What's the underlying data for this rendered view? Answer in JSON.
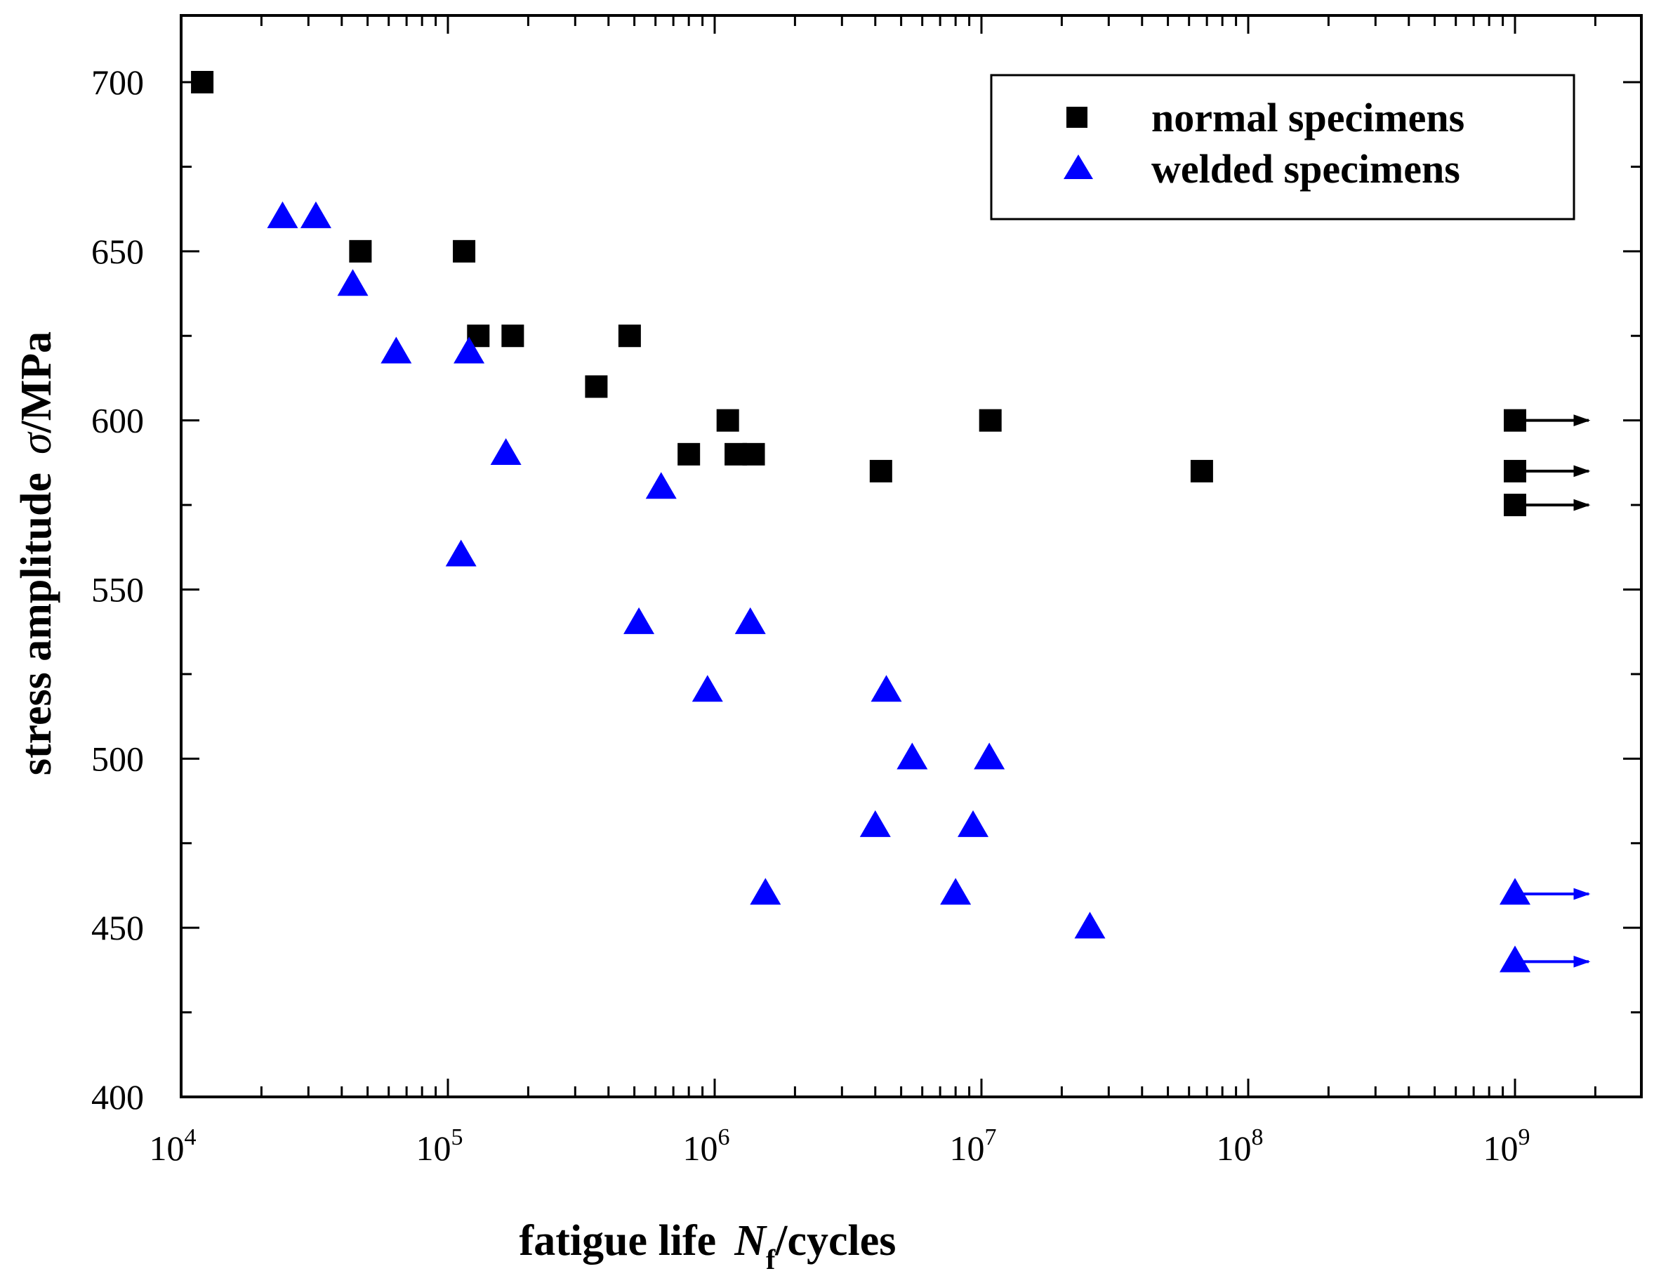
{
  "chart_data": {
    "type": "scatter",
    "title": "",
    "xlabel": {
      "prefix": "fatigue life",
      "symbol": "N",
      "subscript": "f",
      "suffix": "/cycles"
    },
    "ylabel": {
      "prefix": "stress amplitude",
      "symbol": "σ",
      "suffix": "/MPa"
    },
    "xscale": "log",
    "xlim_log10": [
      4,
      9.47
    ],
    "ylim": [
      400,
      720
    ],
    "xticks": [
      {
        "base": "10",
        "exp": "4",
        "log10": 4
      },
      {
        "base": "10",
        "exp": "5",
        "log10": 5
      },
      {
        "base": "10",
        "exp": "6",
        "log10": 6
      },
      {
        "base": "10",
        "exp": "7",
        "log10": 7
      },
      {
        "base": "10",
        "exp": "8",
        "log10": 8
      },
      {
        "base": "10",
        "exp": "9",
        "log10": 9
      }
    ],
    "yticks": [
      400,
      450,
      500,
      550,
      600,
      650,
      700
    ],
    "legend_position": "top-right",
    "series": [
      {
        "name": "normal specimens",
        "marker": "square",
        "color": "#000000",
        "points": [
          {
            "x": 12000,
            "y": 700
          },
          {
            "x": 47000,
            "y": 650
          },
          {
            "x": 115000,
            "y": 650
          },
          {
            "x": 130000,
            "y": 625
          },
          {
            "x": 175000,
            "y": 625
          },
          {
            "x": 480000,
            "y": 625
          },
          {
            "x": 360000,
            "y": 610
          },
          {
            "x": 1120000,
            "y": 600
          },
          {
            "x": 800000,
            "y": 590
          },
          {
            "x": 1200000,
            "y": 590
          },
          {
            "x": 1400000,
            "y": 590
          },
          {
            "x": 4200000,
            "y": 585
          },
          {
            "x": 10800000,
            "y": 600
          },
          {
            "x": 67000000,
            "y": 585
          },
          {
            "x": 1000000000,
            "y": 600,
            "runout": true
          },
          {
            "x": 1000000000,
            "y": 585,
            "runout": true
          },
          {
            "x": 1000000000,
            "y": 575,
            "runout": true
          }
        ]
      },
      {
        "name": "welded specimens",
        "marker": "triangle",
        "color": "#0000ff",
        "points": [
          {
            "x": 24000,
            "y": 660
          },
          {
            "x": 32000,
            "y": 660
          },
          {
            "x": 44000,
            "y": 640
          },
          {
            "x": 64000,
            "y": 620
          },
          {
            "x": 120000,
            "y": 620
          },
          {
            "x": 165000,
            "y": 590
          },
          {
            "x": 112000,
            "y": 560
          },
          {
            "x": 630000,
            "y": 580
          },
          {
            "x": 520000,
            "y": 540
          },
          {
            "x": 1360000,
            "y": 540
          },
          {
            "x": 940000,
            "y": 520
          },
          {
            "x": 4400000,
            "y": 520
          },
          {
            "x": 5500000,
            "y": 500
          },
          {
            "x": 10700000,
            "y": 500
          },
          {
            "x": 4000000,
            "y": 480
          },
          {
            "x": 9300000,
            "y": 480
          },
          {
            "x": 1550000,
            "y": 460
          },
          {
            "x": 8000000,
            "y": 460
          },
          {
            "x": 25500000,
            "y": 450
          },
          {
            "x": 1000000000,
            "y": 460,
            "runout": true
          },
          {
            "x": 1000000000,
            "y": 440,
            "runout": true
          }
        ]
      }
    ]
  }
}
